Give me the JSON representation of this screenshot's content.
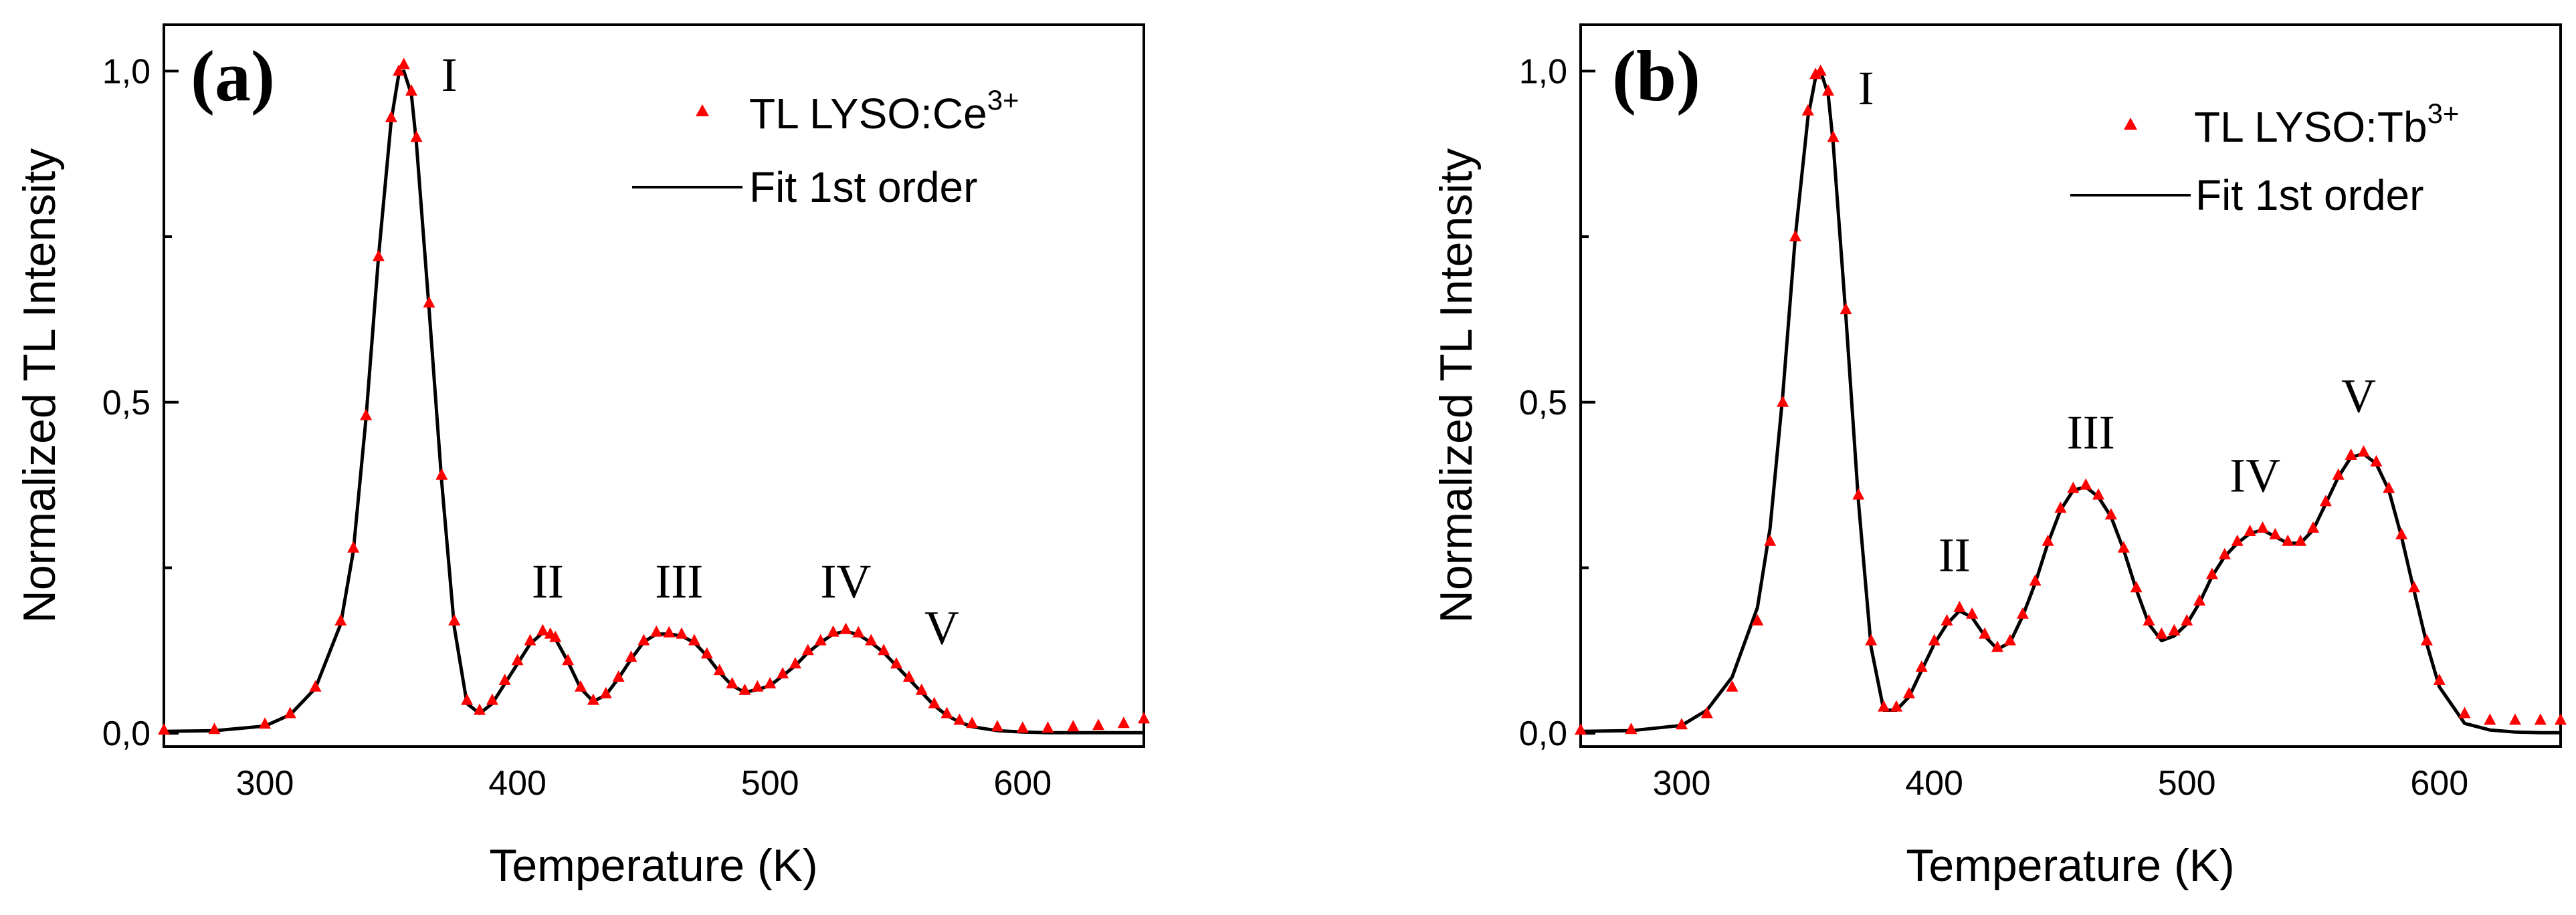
{
  "colors": {
    "data": "#ff0000",
    "fit": "#000000",
    "axis": "#000000"
  },
  "chart_data": [
    {
      "type": "scatter",
      "panel_label": "(a)",
      "xlabel": "Temperature (K)",
      "ylabel": "Normalized TL Intensity",
      "xlim": [
        260,
        648
      ],
      "ylim": [
        -0.02,
        1.07
      ],
      "xticks": [
        300,
        400,
        500,
        600
      ],
      "xtick_labels": [
        "300",
        "400",
        "500",
        "600"
      ],
      "yticks": [
        0,
        0.5,
        1
      ],
      "ytick_labels": [
        "0,0",
        "0,5",
        "1,0"
      ],
      "legend_position": "top-right",
      "legend": {
        "data_label": "TL LYSO:Ce",
        "data_superscript": "3+",
        "fit_label": "Fit 1st order"
      },
      "peak_labels": [
        {
          "text": "I",
          "x": 373,
          "y": 0.97
        },
        {
          "text": "II",
          "x": 412,
          "y": 0.205
        },
        {
          "text": "III",
          "x": 464,
          "y": 0.205
        },
        {
          "text": "IV",
          "x": 530,
          "y": 0.205
        },
        {
          "text": "V",
          "x": 568,
          "y": 0.135
        }
      ],
      "series": [
        {
          "name": "TL LYSO:Ce3+",
          "marker": "triangle",
          "x": [
            260,
            280,
            300,
            310,
            320,
            330,
            335,
            340,
            345,
            350,
            353,
            355,
            358,
            360,
            365,
            370,
            375,
            380,
            385,
            390,
            395,
            400,
            405,
            410,
            413,
            415,
            420,
            425,
            430,
            435,
            440,
            445,
            450,
            455,
            460,
            465,
            470,
            475,
            480,
            485,
            490,
            495,
            500,
            505,
            510,
            515,
            520,
            525,
            530,
            535,
            540,
            545,
            550,
            555,
            560,
            565,
            570,
            575,
            580,
            590,
            600,
            610,
            620,
            630,
            640,
            648
          ],
          "y": [
            0.005,
            0.006,
            0.014,
            0.03,
            0.07,
            0.17,
            0.28,
            0.48,
            0.72,
            0.93,
            1.0,
            1.01,
            0.97,
            0.9,
            0.65,
            0.39,
            0.17,
            0.05,
            0.035,
            0.05,
            0.08,
            0.11,
            0.14,
            0.155,
            0.15,
            0.145,
            0.11,
            0.07,
            0.05,
            0.06,
            0.085,
            0.115,
            0.14,
            0.153,
            0.152,
            0.15,
            0.14,
            0.12,
            0.095,
            0.075,
            0.065,
            0.07,
            0.075,
            0.09,
            0.105,
            0.125,
            0.14,
            0.153,
            0.157,
            0.152,
            0.14,
            0.125,
            0.105,
            0.085,
            0.065,
            0.045,
            0.03,
            0.02,
            0.015,
            0.01,
            0.008,
            0.008,
            0.01,
            0.012,
            0.015,
            0.022
          ]
        },
        {
          "name": "Fit 1st order",
          "marker": "line",
          "x": [
            260,
            280,
            300,
            310,
            320,
            330,
            335,
            340,
            345,
            350,
            353,
            355,
            358,
            360,
            365,
            370,
            375,
            380,
            385,
            390,
            395,
            400,
            405,
            410,
            413,
            415,
            420,
            425,
            430,
            435,
            440,
            445,
            450,
            455,
            460,
            465,
            470,
            475,
            480,
            485,
            490,
            495,
            500,
            505,
            510,
            515,
            520,
            525,
            530,
            535,
            540,
            545,
            550,
            555,
            560,
            565,
            570,
            575,
            580,
            590,
            600,
            610,
            620,
            630,
            640,
            648
          ],
          "y": [
            0.003,
            0.004,
            0.011,
            0.028,
            0.068,
            0.165,
            0.275,
            0.475,
            0.72,
            0.925,
            0.995,
            1.0,
            0.965,
            0.89,
            0.64,
            0.38,
            0.16,
            0.045,
            0.03,
            0.045,
            0.075,
            0.105,
            0.135,
            0.152,
            0.148,
            0.143,
            0.108,
            0.068,
            0.048,
            0.058,
            0.083,
            0.112,
            0.138,
            0.15,
            0.15,
            0.147,
            0.137,
            0.117,
            0.092,
            0.072,
            0.062,
            0.066,
            0.072,
            0.087,
            0.102,
            0.122,
            0.137,
            0.15,
            0.154,
            0.149,
            0.137,
            0.122,
            0.102,
            0.082,
            0.062,
            0.042,
            0.027,
            0.017,
            0.01,
            0.004,
            0.002,
            0.001,
            0.001,
            0.001,
            0.001,
            0.001
          ]
        }
      ]
    },
    {
      "type": "scatter",
      "panel_label": "(b)",
      "xlabel": "Temperature (K)",
      "ylabel": "Normalized TL Intensity",
      "xlim": [
        260,
        648
      ],
      "ylim": [
        -0.02,
        1.07
      ],
      "xticks": [
        300,
        400,
        500,
        600
      ],
      "xtick_labels": [
        "300",
        "400",
        "500",
        "600"
      ],
      "yticks": [
        0,
        0.5,
        1
      ],
      "ytick_labels": [
        "0,0",
        "0,5",
        "1,0"
      ],
      "legend_position": "top-right",
      "legend": {
        "data_label": "TL LYSO:Tb",
        "data_superscript": "3+",
        "fit_label": "Fit 1st order"
      },
      "peak_labels": [
        {
          "text": "I",
          "x": 373,
          "y": 0.95
        },
        {
          "text": "II",
          "x": 408,
          "y": 0.245
        },
        {
          "text": "III",
          "x": 462,
          "y": 0.43
        },
        {
          "text": "IV",
          "x": 527,
          "y": 0.365
        },
        {
          "text": "V",
          "x": 568,
          "y": 0.485
        }
      ],
      "series": [
        {
          "name": "TL LYSO:Tb3+",
          "marker": "triangle",
          "x": [
            260,
            280,
            300,
            310,
            320,
            330,
            335,
            340,
            345,
            350,
            353,
            355,
            358,
            360,
            365,
            370,
            375,
            380,
            385,
            390,
            395,
            400,
            405,
            410,
            415,
            420,
            425,
            430,
            435,
            440,
            445,
            450,
            455,
            460,
            465,
            470,
            475,
            480,
            485,
            490,
            495,
            500,
            505,
            510,
            515,
            520,
            525,
            530,
            535,
            540,
            545,
            550,
            555,
            560,
            565,
            570,
            575,
            580,
            585,
            590,
            595,
            600,
            610,
            620,
            630,
            640,
            648
          ],
          "y": [
            0.005,
            0.006,
            0.013,
            0.03,
            0.07,
            0.17,
            0.29,
            0.5,
            0.75,
            0.94,
            0.995,
            1.0,
            0.97,
            0.9,
            0.64,
            0.36,
            0.14,
            0.04,
            0.04,
            0.06,
            0.1,
            0.14,
            0.17,
            0.19,
            0.18,
            0.15,
            0.13,
            0.14,
            0.18,
            0.23,
            0.29,
            0.34,
            0.37,
            0.375,
            0.36,
            0.33,
            0.28,
            0.22,
            0.17,
            0.15,
            0.155,
            0.17,
            0.2,
            0.24,
            0.27,
            0.29,
            0.305,
            0.31,
            0.3,
            0.29,
            0.29,
            0.31,
            0.35,
            0.39,
            0.42,
            0.425,
            0.41,
            0.37,
            0.3,
            0.22,
            0.14,
            0.08,
            0.03,
            0.02,
            0.02,
            0.02,
            0.02
          ]
        },
        {
          "name": "Fit 1st order",
          "marker": "line",
          "x": [
            260,
            280,
            300,
            310,
            320,
            330,
            335,
            340,
            345,
            350,
            353,
            355,
            358,
            360,
            365,
            370,
            375,
            380,
            385,
            390,
            395,
            400,
            405,
            410,
            415,
            420,
            425,
            430,
            435,
            440,
            445,
            450,
            455,
            460,
            465,
            470,
            475,
            480,
            485,
            490,
            495,
            500,
            505,
            510,
            515,
            520,
            525,
            530,
            535,
            540,
            545,
            550,
            555,
            560,
            565,
            570,
            575,
            580,
            585,
            590,
            595,
            600,
            610,
            620,
            630,
            640,
            648
          ],
          "y": [
            0.003,
            0.004,
            0.012,
            0.035,
            0.085,
            0.19,
            0.31,
            0.51,
            0.75,
            0.93,
            0.99,
            1.0,
            0.965,
            0.89,
            0.63,
            0.35,
            0.13,
            0.035,
            0.035,
            0.055,
            0.095,
            0.135,
            0.165,
            0.185,
            0.175,
            0.147,
            0.127,
            0.137,
            0.177,
            0.227,
            0.287,
            0.337,
            0.367,
            0.372,
            0.357,
            0.327,
            0.277,
            0.217,
            0.165,
            0.14,
            0.147,
            0.165,
            0.197,
            0.237,
            0.267,
            0.287,
            0.302,
            0.307,
            0.297,
            0.287,
            0.287,
            0.307,
            0.347,
            0.387,
            0.417,
            0.422,
            0.407,
            0.367,
            0.297,
            0.215,
            0.135,
            0.07,
            0.015,
            0.005,
            0.002,
            0.001,
            0.001
          ]
        }
      ]
    }
  ]
}
